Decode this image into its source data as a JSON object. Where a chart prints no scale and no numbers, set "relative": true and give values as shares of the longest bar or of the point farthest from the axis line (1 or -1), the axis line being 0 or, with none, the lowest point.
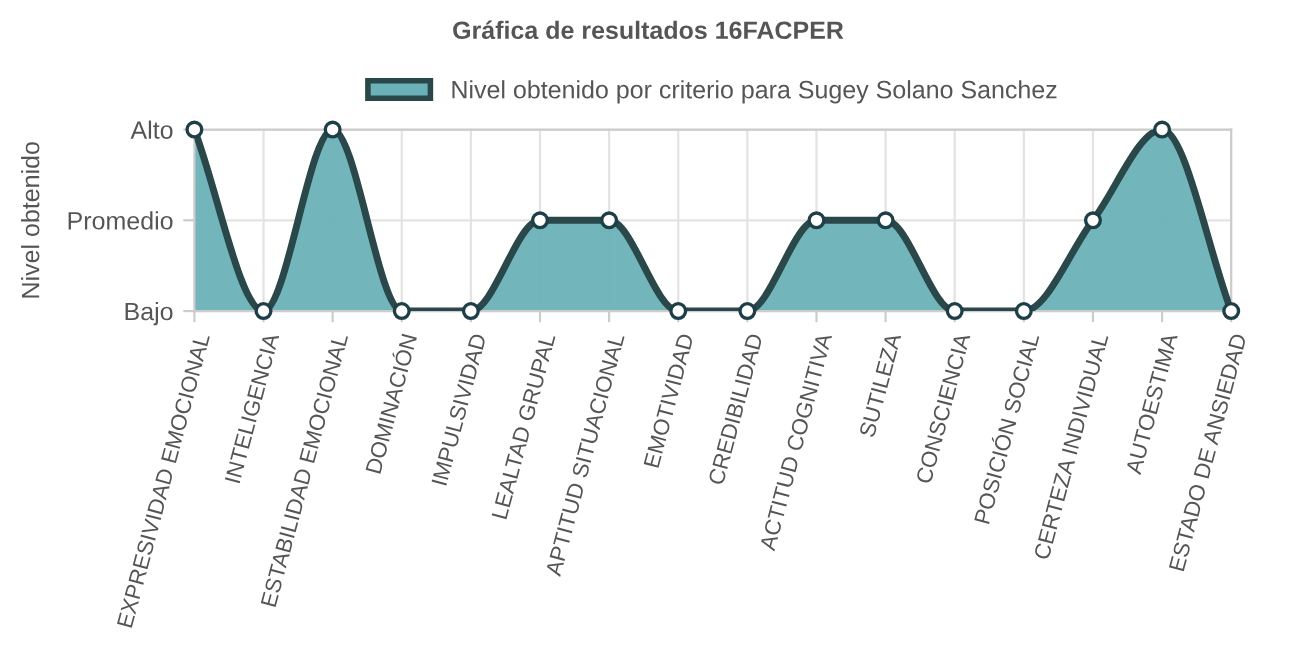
{
  "chart_data": {
    "type": "area",
    "title": "Gráfica de resultados 16FACPER",
    "ylabel": "Nivel obtenido",
    "categories": [
      "EXPRESIVIDAD EMOCIONAL",
      "INTELIGENCIA",
      "ESTABILIDAD EMOCIONAL",
      "DOMINACIÓN",
      "IMPULSIVIDAD",
      "LEALTAD GRUPAL",
      "APTITUD SITUACIONAL",
      "EMOTIVIDAD",
      "CREDIBILIDAD",
      "ACTITUD COGNITIVA",
      "SUTILEZA",
      "CONSCIENCIA",
      "POSICIÓN SOCIAL",
      "CERTEZA INDIVIDUAL",
      "AUTOESTIMA",
      "ESTADO DE ANSIEDAD"
    ],
    "series": [
      {
        "name": "Nivel obtenido por criterio para Sugey Solano Sanchez",
        "color": "#6ab2b8",
        "values": [
          1,
          0,
          1,
          0,
          0,
          0.5,
          0.5,
          0,
          0,
          0.5,
          0.5,
          0,
          0,
          0.5,
          1,
          0
        ]
      }
    ],
    "relative": true,
    "y_categories": [
      "Alto",
      "Promedio",
      "Bajo"
    ],
    "grid": true,
    "legend": "top",
    "marker": "circle",
    "line_style": "solid"
  }
}
